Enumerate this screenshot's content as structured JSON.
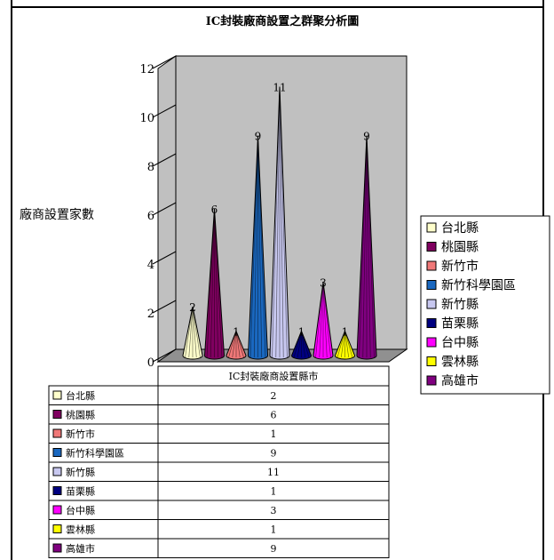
{
  "chart_data": {
    "type": "bar",
    "title": "IC封裝廠商設置之群聚分析圖",
    "ylabel": "廠商設置家數",
    "xlabel": "IC封裝廠商設置縣市",
    "ylim": [
      0,
      12
    ],
    "yticks": [
      "0",
      "2",
      "4",
      "6",
      "8",
      "10",
      "12"
    ],
    "grid": false,
    "legend_position": "right",
    "categories": [
      "台北縣",
      "桃園縣",
      "新竹市",
      "新竹科學園區",
      "新竹縣",
      "苗栗縣",
      "台中縣",
      "雲林縣",
      "高雄市"
    ],
    "values": [
      2,
      6,
      1,
      9,
      11,
      1,
      3,
      1,
      9
    ],
    "value_labels": [
      "2",
      "6",
      "1",
      "9",
      "11",
      "1",
      "3",
      "1",
      "9"
    ],
    "colors": [
      "#ffffcc",
      "#800060",
      "#f07878",
      "#1a68c0",
      "#c8c8f0",
      "#000080",
      "#ff00ff",
      "#ffff00",
      "#800080"
    ]
  }
}
